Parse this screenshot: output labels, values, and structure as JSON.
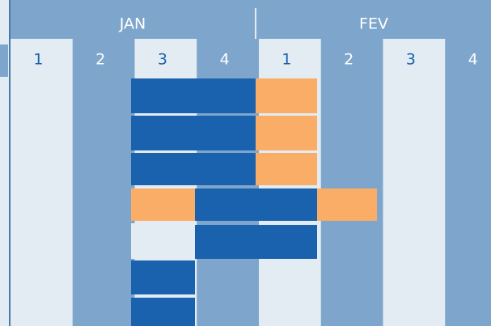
{
  "months": [
    "JAN",
    "FEV"
  ],
  "weeks": [
    [
      "1",
      "2",
      "3",
      "4"
    ],
    [
      "1",
      "2",
      "3",
      "4"
    ]
  ]
}
